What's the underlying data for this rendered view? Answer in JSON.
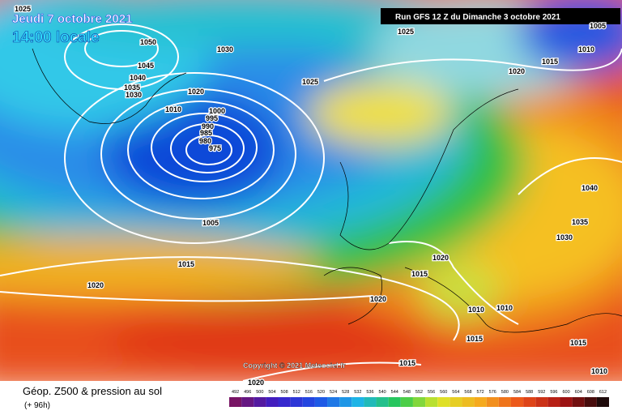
{
  "header": {
    "date": "Jeudi 7 octobre 2021",
    "time": "14:00 locale",
    "run": "Run GFS 12 Z du Dimanche 3 octobre 2021"
  },
  "copyright": "Copyright © 2021 Meteociel.fr",
  "footer": {
    "title": "Géop. Z500 & pression au sol",
    "lead": "(+ 96h)"
  },
  "legend": {
    "values": [
      492,
      496,
      500,
      504,
      508,
      512,
      516,
      520,
      524,
      528,
      532,
      536,
      540,
      544,
      548,
      552,
      556,
      560,
      564,
      568,
      572,
      576,
      580,
      584,
      588,
      592,
      596,
      600,
      604,
      608,
      612
    ]
  },
  "isobar_labels": [
    1025,
    1050,
    1045,
    1040,
    1035,
    1030,
    1030,
    1020,
    1025,
    1010,
    1000,
    995,
    990,
    985,
    980,
    975,
    1005,
    1015,
    1020,
    1025,
    1020,
    1015,
    1010,
    1005,
    1040,
    1035,
    1030,
    1020,
    1015,
    1020,
    1010,
    1010,
    1015,
    1015,
    1015,
    1010,
    1020
  ]
}
